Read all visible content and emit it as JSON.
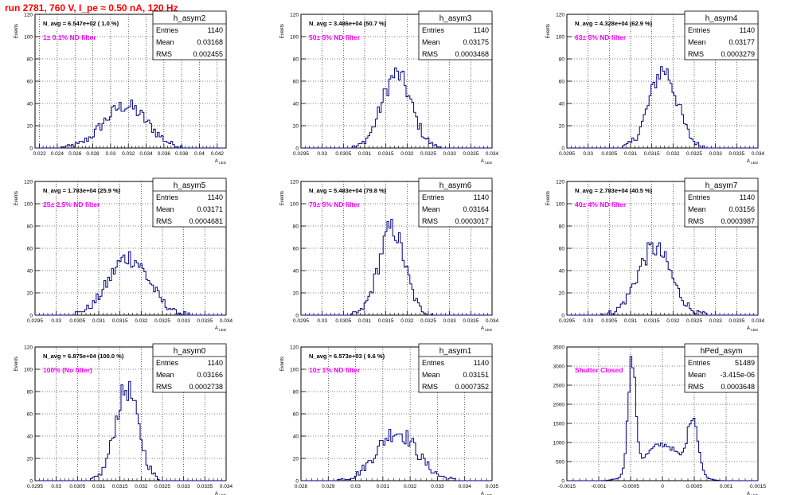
{
  "page": {
    "title": "run 2781,   760 V, I_pe ≈ 0.50 nA, 120 Hz"
  },
  "colors": {
    "hist": "#000080",
    "note": "#ff00ff",
    "title": "#ff0000",
    "grid": "#000000"
  },
  "stats_labels": {
    "entries": "Entries",
    "mean": "Mean",
    "rms": "RMS"
  },
  "chart_data": [
    {
      "type": "bar",
      "name": "h_asym2",
      "ylabel": "Events",
      "xlabel": "A_LED",
      "xlim": [
        0.0215,
        0.043
      ],
      "ylim": [
        0,
        120
      ],
      "xticks": [
        "0.022",
        "0.024",
        "0.026",
        "0.028",
        "0.03",
        "0.032",
        "0.034",
        "0.036",
        "0.038",
        "0.04",
        "0.042"
      ],
      "xtick_values": [
        0.022,
        0.024,
        0.026,
        0.028,
        0.03,
        0.032,
        0.034,
        0.036,
        0.038,
        0.04,
        0.042
      ],
      "yticks": [
        "0",
        "20",
        "40",
        "60",
        "80",
        "100",
        "120"
      ],
      "stats": {
        "entries": "1140",
        "mean": "0.03168",
        "rms": "0.002455"
      },
      "navg": "N_avg = 6.547e+02 ( 1.0 %)",
      "note": "1± 0.1% ND filter",
      "mean": 0.03168,
      "rms": 0.002455,
      "peak": 38,
      "shape": "gauss"
    },
    {
      "type": "bar",
      "name": "h_asym3",
      "ylabel": "Events",
      "xlabel": "A_LED",
      "xlim": [
        0.0295,
        0.034
      ],
      "ylim": [
        0,
        120
      ],
      "xticks": [
        "0.0295",
        "0.03",
        "0.0305",
        "0.031",
        "0.0315",
        "0.032",
        "0.0325",
        "0.033",
        "0.0335",
        "0.034"
      ],
      "xtick_values": [
        0.0295,
        0.03,
        0.0305,
        0.031,
        0.0315,
        0.032,
        0.0325,
        0.033,
        0.0335,
        0.034
      ],
      "yticks": [
        "0",
        "20",
        "40",
        "60",
        "80",
        "100",
        "120"
      ],
      "stats": {
        "entries": "1140",
        "mean": "0.03175",
        "rms": "0.0003468"
      },
      "navg": "N_avg = 3.486e+04 (50.7 %)",
      "note": "50± 5% ND filter",
      "mean": 0.03175,
      "rms": 0.0003468,
      "peak": 66,
      "shape": "gauss"
    },
    {
      "type": "bar",
      "name": "h_asym4",
      "ylabel": "Events",
      "xlabel": "A_LED",
      "xlim": [
        0.0295,
        0.034
      ],
      "ylim": [
        0,
        120
      ],
      "xticks": [
        "0.0295",
        "0.03",
        "0.0305",
        "0.031",
        "0.0315",
        "0.032",
        "0.0325",
        "0.033",
        "0.0335",
        "0.034"
      ],
      "xtick_values": [
        0.0295,
        0.03,
        0.0305,
        0.031,
        0.0315,
        0.032,
        0.0325,
        0.033,
        0.0335,
        0.034
      ],
      "yticks": [
        "0",
        "20",
        "40",
        "60",
        "80",
        "100",
        "120"
      ],
      "stats": {
        "entries": "1140",
        "mean": "0.03177",
        "rms": "0.0003279"
      },
      "navg": "N_avg = 4.328e+04 (62.9 %)",
      "note": "63± 5% ND filter",
      "mean": 0.03177,
      "rms": 0.0003279,
      "peak": 70,
      "shape": "gauss"
    },
    {
      "type": "bar",
      "name": "h_asym5",
      "ylabel": "Events",
      "xlabel": "A_LED",
      "xlim": [
        0.0295,
        0.034
      ],
      "ylim": [
        0,
        120
      ],
      "xticks": [
        "0.0295",
        "0.03",
        "0.0305",
        "0.031",
        "0.0315",
        "0.032",
        "0.0325",
        "0.033",
        "0.0335",
        "0.034"
      ],
      "xtick_values": [
        0.0295,
        0.03,
        0.0305,
        0.031,
        0.0315,
        0.032,
        0.0325,
        0.033,
        0.0335,
        0.034
      ],
      "yticks": [
        "0",
        "20",
        "40",
        "60",
        "80",
        "100",
        "120"
      ],
      "stats": {
        "entries": "1140",
        "mean": "0.03171",
        "rms": "0.0004681"
      },
      "navg": "N_avg = 1.783e+04 (25.9 %)",
      "note": "25± 2.5% ND filter",
      "mean": 0.03171,
      "rms": 0.0004681,
      "peak": 52,
      "shape": "gauss"
    },
    {
      "type": "bar",
      "name": "h_asym6",
      "ylabel": "Events",
      "xlabel": "A_LED",
      "xlim": [
        0.0295,
        0.034
      ],
      "ylim": [
        0,
        120
      ],
      "xticks": [
        "0.0295",
        "0.03",
        "0.0305",
        "0.031",
        "0.0315",
        "0.032",
        "0.0325",
        "0.033",
        "0.0335",
        "0.034"
      ],
      "xtick_values": [
        0.0295,
        0.03,
        0.0305,
        0.031,
        0.0315,
        0.032,
        0.0325,
        0.033,
        0.0335,
        0.034
      ],
      "yticks": [
        "0",
        "20",
        "40",
        "60",
        "80",
        "100",
        "120"
      ],
      "stats": {
        "entries": "1140",
        "mean": "0.03164",
        "rms": "0.0003017"
      },
      "navg": "N_avg = 5.483e+04 (79.8 %)",
      "note": "79± 5% ND filter",
      "mean": 0.03164,
      "rms": 0.0003017,
      "peak": 78,
      "shape": "gauss"
    },
    {
      "type": "bar",
      "name": "h_asym7",
      "ylabel": "Events",
      "xlabel": "A_LED",
      "xlim": [
        0.0295,
        0.034
      ],
      "ylim": [
        0,
        120
      ],
      "xticks": [
        "0.0295",
        "0.03",
        "0.0305",
        "0.031",
        "0.0315",
        "0.032",
        "0.0325",
        "0.033",
        "0.0335",
        "0.034"
      ],
      "xtick_values": [
        0.0295,
        0.03,
        0.0305,
        0.031,
        0.0315,
        0.032,
        0.0325,
        0.033,
        0.0335,
        0.034
      ],
      "yticks": [
        "0",
        "20",
        "40",
        "60",
        "80",
        "100",
        "120"
      ],
      "stats": {
        "entries": "1140",
        "mean": "0.03156",
        "rms": "0.0003987"
      },
      "navg": "N_avg = 2.783e+04 (40.5 %)",
      "note": "40± 4% ND filter",
      "mean": 0.03156,
      "rms": 0.0003987,
      "peak": 60,
      "shape": "gauss"
    },
    {
      "type": "bar",
      "name": "h_asym0",
      "ylabel": "Events",
      "xlabel": "A_LED",
      "xlim": [
        0.0295,
        0.034
      ],
      "ylim": [
        0,
        120
      ],
      "xticks": [
        "0.0295",
        "0.03",
        "0.0305",
        "0.031",
        "0.0315",
        "0.032",
        "0.0325",
        "0.033",
        "0.0335",
        "0.034"
      ],
      "xtick_values": [
        0.0295,
        0.03,
        0.0305,
        0.031,
        0.0315,
        0.032,
        0.0325,
        0.033,
        0.0335,
        0.034
      ],
      "yticks": [
        "0",
        "20",
        "40",
        "60",
        "80",
        "100",
        "120"
      ],
      "stats": {
        "entries": "1140",
        "mean": "0.03166",
        "rms": "0.0002738"
      },
      "navg": "N_avg = 6.875e+04 (100.0 %)",
      "note": "100% (No filter)",
      "mean": 0.03166,
      "rms": 0.0002738,
      "peak": 82,
      "shape": "gauss"
    },
    {
      "type": "bar",
      "name": "h_asym1",
      "ylabel": "Events",
      "xlabel": "A_LED",
      "xlim": [
        0.028,
        0.035
      ],
      "ylim": [
        0,
        120
      ],
      "xticks": [
        "0.028",
        "0.029",
        "0.03",
        "0.031",
        "0.032",
        "0.033",
        "0.034",
        "0.035"
      ],
      "xtick_values": [
        0.028,
        0.029,
        0.03,
        0.031,
        0.032,
        0.033,
        0.034,
        0.035
      ],
      "yticks": [
        "0",
        "20",
        "40",
        "60",
        "80",
        "100",
        "120"
      ],
      "stats": {
        "entries": "1140",
        "mean": "0.03151",
        "rms": "0.0007352"
      },
      "navg": "N_avg = 6.573e+03 ( 9.6 %)",
      "note": "10± 1% ND filter",
      "mean": 0.03151,
      "rms": 0.0007352,
      "peak": 44,
      "shape": "gauss"
    },
    {
      "type": "bar",
      "name": "hPed_asym",
      "ylabel": "",
      "xlabel": "A_LED",
      "xlim": [
        -0.0015,
        0.0015
      ],
      "ylim": [
        0,
        3500
      ],
      "xticks": [
        "-0.0015",
        "-0.001",
        "-0.0005",
        "0",
        "0.0005",
        "0.001",
        "0.0015"
      ],
      "xtick_values": [
        -0.0015,
        -0.001,
        -0.0005,
        0,
        0.0005,
        0.001,
        0.0015
      ],
      "yticks": [
        "0",
        "500",
        "1000",
        "1500",
        "2000",
        "2500",
        "3000",
        "3500"
      ],
      "stats": {
        "entries": "51489",
        "mean": "-3.415e-06",
        "rms": "0.0003648"
      },
      "navg": "",
      "note": "Shutter Closed",
      "mean": -3.415e-06,
      "rms": 0.0003648,
      "shape": "bimodal",
      "modes": [
        {
          "center": -0.00048,
          "sigma": 6e-05,
          "amp": 2900
        },
        {
          "center": 0.00048,
          "sigma": 8e-05,
          "amp": 1450
        },
        {
          "center": 0.0,
          "sigma": 0.0003,
          "amp": 950
        }
      ]
    }
  ]
}
